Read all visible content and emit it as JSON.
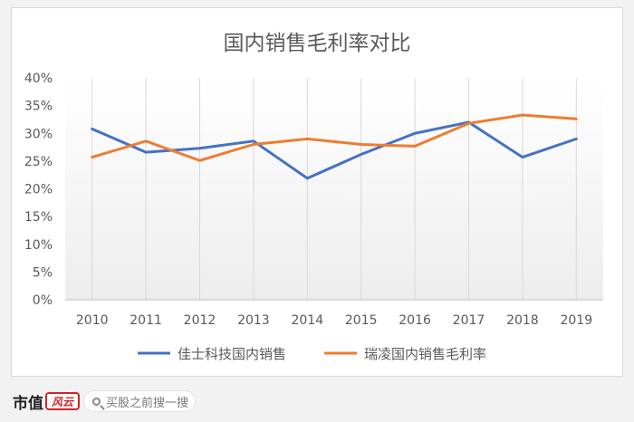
{
  "chart_data": {
    "type": "line",
    "title": "国内销售毛利率对比",
    "xlabel": "",
    "ylabel": "",
    "categories": [
      "2010",
      "2011",
      "2012",
      "2013",
      "2014",
      "2015",
      "2016",
      "2017",
      "2018",
      "2019"
    ],
    "ylim": [
      0,
      40
    ],
    "yticks": [
      "0%",
      "5%",
      "10%",
      "15%",
      "20%",
      "25%",
      "30%",
      "35%",
      "40%"
    ],
    "grid": "vertical",
    "legend_position": "bottom",
    "series": [
      {
        "name": "佳士科技国内销售",
        "color": "#4472c4",
        "values": [
          30.8,
          26.6,
          27.3,
          28.6,
          21.9,
          26.2,
          30.0,
          32.0,
          25.7,
          29.0
        ]
      },
      {
        "name": "瑞凌国内销售毛利率",
        "color": "#ed7d31",
        "values": [
          25.7,
          28.6,
          25.1,
          28.0,
          29.0,
          28.0,
          27.7,
          31.8,
          33.3,
          32.6
        ]
      }
    ]
  },
  "footer": {
    "brand": "市值",
    "brand_seal": "风云",
    "search_placeholder": "买股之前搜一搜"
  }
}
